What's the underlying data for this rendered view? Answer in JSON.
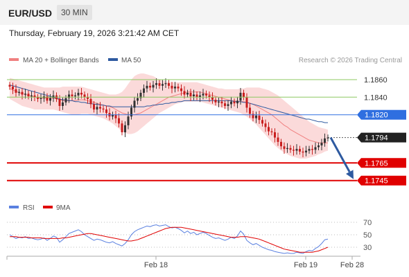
{
  "header": {
    "symbol": "EUR/USD",
    "timeframe": "30 MIN",
    "timestamp": "Thursday, February 19, 2026 3:21:42 AM CET"
  },
  "legend": {
    "ma20": "MA 20 + Bollinger Bands",
    "ma50": "MA 50",
    "credit": "Research © 2026 Trading Central",
    "rsi": "RSI",
    "rsi_ma": "9MA"
  },
  "colors": {
    "bullish": "#333333",
    "bearish": "#c81e1e",
    "resistance": "#8cc860",
    "pivot": "#2f6fe0",
    "support": "#e00000",
    "last": "#222222",
    "ma50": "#2e5aa0",
    "ma20": "#f08080",
    "band": "#fad4d4",
    "arrow": "#2e5aa0",
    "rsi": "#5a80e0",
    "rsi_ma": "#e00000"
  },
  "chart_data": [
    {
      "type": "candlestick",
      "ylim": [
        1.1725,
        1.1875
      ],
      "x_ticks": [
        "Feb 18",
        "Feb 19",
        "Feb 28"
      ],
      "levels": [
        {
          "value": 1.186,
          "label": "1.1860",
          "kind": "resistance"
        },
        {
          "value": 1.184,
          "label": "1.1840",
          "kind": "resistance"
        },
        {
          "value": 1.182,
          "label": "1.1820",
          "kind": "pivot"
        },
        {
          "value": 1.1765,
          "label": "1.1765",
          "kind": "support"
        },
        {
          "value": 1.1745,
          "label": "1.1745",
          "kind": "support"
        }
      ],
      "last_price": {
        "value": 1.1794,
        "label": "1.1794"
      },
      "close": [
        1.1852,
        1.1849,
        1.1845,
        1.1846,
        1.1843,
        1.1844,
        1.1841,
        1.1842,
        1.184,
        1.1838,
        1.1839,
        1.1841,
        1.1836,
        1.1839,
        1.1842,
        1.1838,
        1.183,
        1.1834,
        1.1839,
        1.1843,
        1.1841,
        1.1842,
        1.1845,
        1.1843,
        1.184,
        1.1838,
        1.1832,
        1.1826,
        1.1829,
        1.1827,
        1.1826,
        1.1822,
        1.1818,
        1.182,
        1.1816,
        1.181,
        1.18,
        1.1808,
        1.1818,
        1.1828,
        1.1836,
        1.1839,
        1.1845,
        1.185,
        1.1853,
        1.1851,
        1.1854,
        1.1856,
        1.1853,
        1.1855,
        1.1856,
        1.1853,
        1.185,
        1.1852,
        1.185,
        1.1847,
        1.1843,
        1.1845,
        1.1841,
        1.1843,
        1.184,
        1.1842,
        1.1844,
        1.1842,
        1.184,
        1.1837,
        1.1834,
        1.1835,
        1.1833,
        1.183,
        1.1832,
        1.1835,
        1.1833,
        1.1836,
        1.1845,
        1.184,
        1.1828,
        1.1821,
        1.1816,
        1.1819,
        1.1814,
        1.181,
        1.1806,
        1.1801,
        1.18,
        1.1794,
        1.1789,
        1.1784,
        1.1781,
        1.1782,
        1.178,
        1.1779,
        1.1781,
        1.1778,
        1.1777,
        1.1779,
        1.1781,
        1.178,
        1.1783,
        1.1785,
        1.1788,
        1.1793,
        1.1794
      ],
      "ma20": [
        1.185,
        1.1848,
        1.1847,
        1.1845,
        1.1844,
        1.1843,
        1.1842,
        1.1841,
        1.184,
        1.184,
        1.1839,
        1.1839,
        1.1839,
        1.1839,
        1.1839,
        1.1838,
        1.1837,
        1.1836,
        1.1836,
        1.1836,
        1.1836,
        1.1836,
        1.1837,
        1.1837,
        1.1837,
        1.1836,
        1.1835,
        1.1834,
        1.1833,
        1.1832,
        1.1831,
        1.183,
        1.1829,
        1.1828,
        1.1826,
        1.1824,
        1.1822,
        1.1821,
        1.182,
        1.182,
        1.182,
        1.1821,
        1.1822,
        1.1824,
        1.1826,
        1.1828,
        1.183,
        1.1832,
        1.1834,
        1.1836,
        1.1838,
        1.184,
        1.1841,
        1.1842,
        1.1843,
        1.1844,
        1.1845,
        1.1846,
        1.1846,
        1.1846,
        1.1846,
        1.1846,
        1.1845,
        1.1844,
        1.1843,
        1.1842,
        1.1841,
        1.184,
        1.1839,
        1.1838,
        1.1837,
        1.1836,
        1.1836,
        1.1835,
        1.1835,
        1.1835,
        1.1834,
        1.1833,
        1.1832,
        1.183,
        1.1828,
        1.1826,
        1.1824,
        1.1822,
        1.182,
        1.1817,
        1.1814,
        1.1811,
        1.1808,
        1.1806,
        1.1803,
        1.1801,
        1.1799,
        1.1797,
        1.1795,
        1.1793,
        1.1791,
        1.179,
        1.1789,
        1.1788,
        1.1788,
        1.1788,
        1.1788
      ],
      "ma50": [
        1.1854,
        1.1853,
        1.1852,
        1.1851,
        1.185,
        1.1849,
        1.1848,
        1.1847,
        1.1846,
        1.1845,
        1.1844,
        1.1843,
        1.1842,
        1.1841,
        1.184,
        1.1839,
        1.1838,
        1.1837,
        1.1837,
        1.1836,
        1.1836,
        1.1835,
        1.1835,
        1.1834,
        1.1834,
        1.1833,
        1.1833,
        1.1832,
        1.1832,
        1.1831,
        1.1831,
        1.183,
        1.183,
        1.1829,
        1.1829,
        1.1829,
        1.1829,
        1.1829,
        1.1829,
        1.1829,
        1.1829,
        1.1829,
        1.1829,
        1.1829,
        1.183,
        1.183,
        1.1831,
        1.1831,
        1.1832,
        1.1832,
        1.1833,
        1.1833,
        1.1834,
        1.1834,
        1.1835,
        1.1835,
        1.1836,
        1.1836,
        1.1836,
        1.1836,
        1.1836,
        1.1836,
        1.1836,
        1.1836,
        1.1836,
        1.1836,
        1.1836,
        1.1836,
        1.1836,
        1.1836,
        1.1836,
        1.1836,
        1.1835,
        1.1835,
        1.1835,
        1.1834,
        1.1834,
        1.1833,
        1.1832,
        1.1831,
        1.183,
        1.1829,
        1.1828,
        1.1827,
        1.1826,
        1.1825,
        1.1824,
        1.1823,
        1.1822,
        1.1821,
        1.182,
        1.1819,
        1.1818,
        1.1817,
        1.1816,
        1.1815,
        1.1815,
        1.1814,
        1.1813,
        1.1812,
        1.1812,
        1.1811,
        1.1811
      ],
      "band_upper": [
        1.1862,
        1.1861,
        1.186,
        1.1859,
        1.1858,
        1.1857,
        1.1856,
        1.1855,
        1.1854,
        1.1853,
        1.1852,
        1.1851,
        1.1851,
        1.1851,
        1.1851,
        1.1851,
        1.1851,
        1.1852,
        1.1852,
        1.1852,
        1.1852,
        1.1852,
        1.1852,
        1.1852,
        1.1851,
        1.185,
        1.1849,
        1.1848,
        1.1847,
        1.1846,
        1.1845,
        1.1844,
        1.1843,
        1.1843,
        1.1843,
        1.1844,
        1.1846,
        1.185,
        1.1855,
        1.186,
        1.1864,
        1.1866,
        1.1867,
        1.1867,
        1.1866,
        1.1865,
        1.1864,
        1.1862,
        1.186,
        1.1859,
        1.1858,
        1.1857,
        1.1857,
        1.1857,
        1.1857,
        1.1857,
        1.1857,
        1.1857,
        1.1857,
        1.1857,
        1.1857,
        1.1856,
        1.1855,
        1.1854,
        1.1853,
        1.1852,
        1.1851,
        1.185,
        1.185,
        1.1849,
        1.1849,
        1.1849,
        1.1849,
        1.1849,
        1.185,
        1.185,
        1.1851,
        1.1851,
        1.1851,
        1.1851,
        1.1851,
        1.185,
        1.1849,
        1.1848,
        1.1846,
        1.1844,
        1.1842,
        1.1839,
        1.1836,
        1.1833,
        1.183,
        1.1827,
        1.1824,
        1.1821,
        1.1818,
        1.1815,
        1.1812,
        1.181,
        1.1808,
        1.1806,
        1.1805,
        1.1804,
        1.1803
      ],
      "band_lower": [
        1.1838,
        1.1836,
        1.1834,
        1.1832,
        1.183,
        1.1829,
        1.1828,
        1.1827,
        1.1826,
        1.1826,
        1.1826,
        1.1826,
        1.1826,
        1.1826,
        1.1826,
        1.1825,
        1.1824,
        1.1823,
        1.1822,
        1.1821,
        1.182,
        1.182,
        1.182,
        1.1821,
        1.1821,
        1.1821,
        1.182,
        1.1819,
        1.1818,
        1.1817,
        1.1816,
        1.1814,
        1.1812,
        1.181,
        1.1807,
        1.1804,
        1.1801,
        1.1799,
        1.1798,
        1.1798,
        1.1799,
        1.1801,
        1.1804,
        1.1807,
        1.181,
        1.1813,
        1.1816,
        1.1819,
        1.1822,
        1.1824,
        1.1826,
        1.1828,
        1.183,
        1.1832,
        1.1833,
        1.1834,
        1.1835,
        1.1835,
        1.1835,
        1.1835,
        1.1835,
        1.1835,
        1.1834,
        1.1833,
        1.1832,
        1.1831,
        1.183,
        1.1829,
        1.1828,
        1.1827,
        1.1826,
        1.1825,
        1.1824,
        1.1823,
        1.1822,
        1.182,
        1.1818,
        1.1815,
        1.1812,
        1.1809,
        1.1805,
        1.1801,
        1.1797,
        1.1793,
        1.1789,
        1.1785,
        1.1782,
        1.1779,
        1.1777,
        1.1775,
        1.1773,
        1.1772,
        1.1771,
        1.177,
        1.177,
        1.177,
        1.1771,
        1.1772,
        1.1773,
        1.1775,
        1.1776,
        1.1778,
        1.1779
      ],
      "projection": {
        "from": 1.1794,
        "to": 1.1745
      }
    },
    {
      "type": "line",
      "name": "RSI",
      "ylim": [
        20,
        80
      ],
      "y_ticks": [
        70,
        50,
        30
      ],
      "rsi": [
        50,
        47,
        44,
        46,
        45,
        47,
        44,
        45,
        43,
        42,
        43,
        45,
        41,
        44,
        48,
        46,
        38,
        42,
        47,
        52,
        54,
        56,
        58,
        55,
        50,
        47,
        44,
        41,
        43,
        42,
        40,
        38,
        37,
        39,
        36,
        34,
        32,
        36,
        42,
        50,
        55,
        58,
        60,
        62,
        64,
        63,
        65,
        66,
        64,
        65,
        66,
        63,
        61,
        62,
        60,
        57,
        53,
        56,
        52,
        54,
        50,
        52,
        54,
        52,
        49,
        46,
        44,
        45,
        43,
        41,
        43,
        46,
        44,
        48,
        56,
        51,
        41,
        37,
        34,
        36,
        33,
        30,
        28,
        26,
        25,
        23,
        22,
        21,
        20,
        21,
        20,
        20,
        22,
        21,
        20,
        23,
        25,
        24,
        28,
        31,
        36,
        42,
        43
      ],
      "rsi_ma": [
        47,
        47,
        47,
        46,
        46,
        46,
        46,
        45,
        45,
        45,
        45,
        44,
        44,
        44,
        44,
        44,
        44,
        45,
        45,
        46,
        47,
        48,
        49,
        50,
        51,
        52,
        52,
        51,
        50,
        49,
        48,
        47,
        46,
        45,
        44,
        43,
        42,
        41,
        40,
        40,
        41,
        42,
        44,
        46,
        48,
        50,
        52,
        54,
        56,
        58,
        60,
        61,
        62,
        62,
        62,
        62,
        61,
        60,
        59,
        58,
        57,
        56,
        55,
        54,
        53,
        52,
        51,
        50,
        49,
        48,
        47,
        46,
        46,
        46,
        47,
        47,
        47,
        46,
        45,
        44,
        43,
        41,
        39,
        37,
        35,
        33,
        31,
        29,
        27,
        26,
        25,
        24,
        23,
        22,
        22,
        22,
        22,
        22,
        23,
        24,
        26,
        28,
        30
      ]
    }
  ]
}
